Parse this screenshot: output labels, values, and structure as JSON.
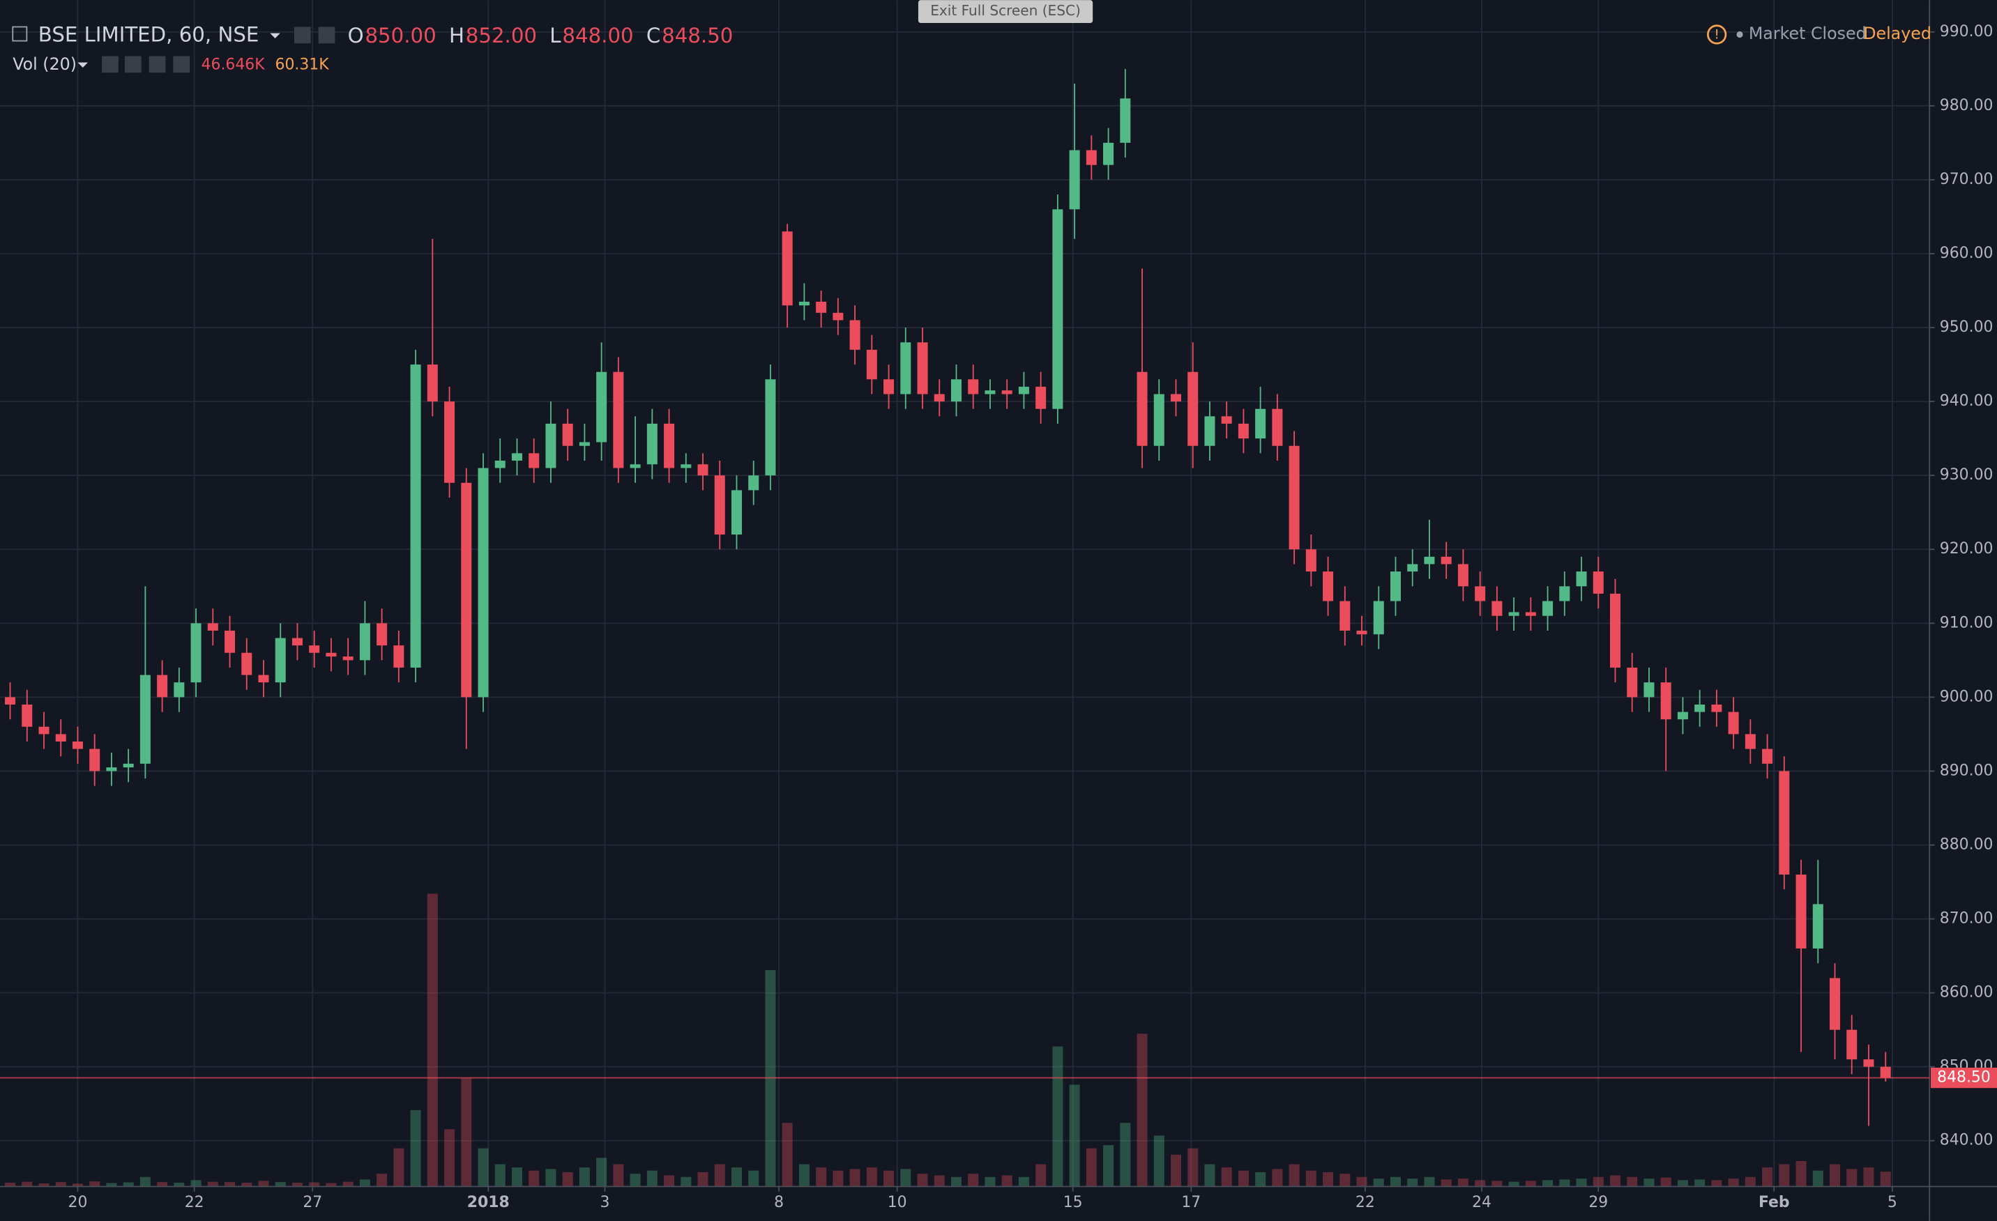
{
  "header": {
    "symbol": "BSE LIMITED, 60, NSE",
    "ohlc": [
      {
        "key": "O",
        "value": "850.00"
      },
      {
        "key": "H",
        "value": "852.00"
      },
      {
        "key": "L",
        "value": "848.00"
      },
      {
        "key": "C",
        "value": "848.50"
      }
    ],
    "volume_title": "Vol (20)",
    "volume_value": "46.646K",
    "volume_ma": "60.31K",
    "exit_button": "Exit Full Screen (ESC)",
    "status": "Market Closed",
    "delay": "Delayed"
  },
  "chart_data": {
    "type": "candlestick",
    "open": [
      900,
      899,
      896,
      895,
      894,
      893,
      890,
      890.5,
      891,
      903,
      900,
      902,
      910,
      909,
      906,
      903,
      902,
      908,
      907,
      906,
      905.5,
      905,
      910,
      907,
      904,
      945,
      940,
      929,
      900,
      931,
      932,
      933,
      931,
      937,
      934,
      934.5,
      944,
      931,
      931.5,
      937,
      931,
      931.5,
      930,
      922,
      928,
      930,
      963,
      953,
      953.5,
      952,
      951,
      947,
      943,
      941,
      948,
      941,
      940,
      943,
      941,
      941.5,
      941,
      942,
      939,
      966,
      974,
      972,
      975,
      944,
      934,
      941,
      944,
      934,
      938,
      937,
      935,
      939,
      934,
      920,
      917,
      913,
      909,
      908.5,
      913,
      917,
      918,
      919,
      918,
      915,
      913,
      911,
      911.5,
      911,
      913,
      915,
      917,
      914,
      904,
      900,
      902,
      897,
      898,
      899,
      898,
      895,
      893,
      890,
      876,
      866,
      862,
      855,
      851,
      850
    ],
    "high": [
      902,
      901,
      898,
      897,
      896,
      895,
      892.5,
      893,
      915,
      905,
      904,
      912,
      912,
      911,
      908,
      905,
      910,
      910,
      909,
      908,
      908,
      913,
      912,
      909,
      947,
      962,
      942,
      931,
      933,
      935,
      935,
      935,
      940,
      939,
      937,
      948,
      946,
      938,
      939,
      939,
      933,
      933,
      932,
      930,
      932,
      945,
      964,
      956,
      955,
      954,
      953,
      949,
      945,
      950,
      950,
      943,
      945,
      945,
      943,
      943,
      944,
      944,
      968,
      983,
      976,
      977,
      985,
      958,
      943,
      943,
      948,
      940,
      940,
      939,
      942,
      941,
      936,
      922,
      919,
      915,
      911,
      915,
      919,
      920,
      924,
      921,
      920,
      917,
      915,
      913.5,
      913.5,
      915,
      917,
      919,
      919,
      916,
      906,
      904,
      904,
      900,
      901,
      901,
      900,
      897,
      895,
      892,
      878,
      878,
      864,
      857,
      853,
      852
    ],
    "low": [
      897,
      894,
      893,
      892,
      891,
      888,
      888,
      888.5,
      889,
      898,
      898,
      900,
      907,
      904,
      901,
      900,
      900,
      905,
      904,
      903.5,
      903,
      903,
      905,
      902,
      902,
      938,
      927,
      893,
      898,
      929,
      930,
      929,
      929,
      932,
      932,
      932,
      929,
      929,
      929.5,
      929,
      929,
      928,
      920,
      920,
      926,
      928,
      950,
      951,
      950,
      949,
      945,
      941,
      939,
      939,
      939,
      938,
      938,
      939,
      939,
      939,
      939,
      937,
      937,
      962,
      970,
      970,
      973,
      931,
      932,
      938,
      931,
      932,
      935,
      933,
      933,
      932,
      918,
      915,
      911,
      907,
      907,
      906.5,
      911,
      915,
      916,
      916,
      913,
      911,
      909,
      909,
      909,
      909,
      911,
      913,
      912,
      902,
      898,
      898,
      890,
      895,
      896,
      896,
      893,
      891,
      889,
      874,
      852,
      864,
      851,
      849,
      842,
      848
    ],
    "close": [
      899,
      896,
      895,
      894,
      893,
      890,
      890.5,
      891,
      903,
      900,
      902,
      910,
      909,
      906,
      903,
      902,
      908,
      907,
      906,
      905.5,
      905,
      910,
      907,
      904,
      945,
      940,
      929,
      900,
      931,
      932,
      933,
      931,
      937,
      934,
      934.5,
      944,
      931,
      931.5,
      937,
      931,
      931.5,
      930,
      922,
      928,
      930,
      943,
      953,
      953.5,
      952,
      951,
      947,
      943,
      941,
      948,
      941,
      940,
      943,
      941,
      941.5,
      941,
      942,
      939,
      966,
      974,
      972,
      975,
      981,
      934,
      941,
      940,
      934,
      938,
      937,
      935,
      939,
      934,
      920,
      917,
      913,
      909,
      908.5,
      913,
      917,
      918,
      919,
      918,
      915,
      913,
      911,
      911.5,
      911,
      913,
      915,
      917,
      914,
      904,
      900,
      902,
      897,
      898,
      899,
      898,
      895,
      893,
      891,
      876,
      866,
      872,
      855,
      851,
      850,
      848.5
    ],
    "volume": [
      12000,
      15000,
      10000,
      14000,
      9000,
      16000,
      11000,
      13000,
      30000,
      14000,
      12000,
      20000,
      15000,
      14000,
      12000,
      18000,
      14000,
      12000,
      13000,
      11000,
      15000,
      22000,
      40000,
      120000,
      240000,
      920000,
      180000,
      340000,
      120000,
      70000,
      60000,
      50000,
      55000,
      45000,
      60000,
      90000,
      70000,
      40000,
      50000,
      35000,
      30000,
      45000,
      70000,
      60000,
      50000,
      680000,
      200000,
      70000,
      60000,
      50000,
      55000,
      60000,
      50000,
      55000,
      40000,
      35000,
      30000,
      40000,
      30000,
      35000,
      30000,
      70000,
      440000,
      320000,
      120000,
      130000,
      200000,
      480000,
      160000,
      100000,
      120000,
      70000,
      60000,
      50000,
      45000,
      55000,
      70000,
      50000,
      45000,
      40000,
      30000,
      25000,
      30000,
      25000,
      30000,
      22000,
      25000,
      20000,
      18000,
      15000,
      18000,
      20000,
      22000,
      25000,
      30000,
      35000,
      30000,
      25000,
      28000,
      20000,
      22000,
      20000,
      25000,
      30000,
      60000,
      70000,
      80000,
      50000,
      70000,
      55000,
      60000,
      46646
    ],
    "up_color": "#53b987",
    "down_color": "#eb4d5c",
    "grid": true,
    "ylim": [
      833.8,
      994.3
    ],
    "yticks": [
      {
        "value": 840,
        "label": "840.00"
      },
      {
        "value": 850,
        "label": "850.00"
      },
      {
        "value": 860,
        "label": "860.00"
      },
      {
        "value": 870,
        "label": "870.00"
      },
      {
        "value": 880,
        "label": "880.00"
      },
      {
        "value": 890,
        "label": "890.00"
      },
      {
        "value": 900,
        "label": "900.00"
      },
      {
        "value": 910,
        "label": "910.00"
      },
      {
        "value": 920,
        "label": "920.00"
      },
      {
        "value": 930,
        "label": "930.00"
      },
      {
        "value": 940,
        "label": "940.00"
      },
      {
        "value": 950,
        "label": "950.00"
      },
      {
        "value": 960,
        "label": "960.00"
      },
      {
        "value": 970,
        "label": "970.00"
      },
      {
        "value": 980,
        "label": "980.00"
      },
      {
        "value": 990,
        "label": "990.00"
      }
    ],
    "xlim": [
      -0.6,
      113.6
    ],
    "xticks": [
      {
        "value": 4.0,
        "label": "20"
      },
      {
        "value": 10.9,
        "label": "22"
      },
      {
        "value": 17.9,
        "label": "27"
      },
      {
        "value": 28.3,
        "label": "2018"
      },
      {
        "value": 35.2,
        "label": "3"
      },
      {
        "value": 45.5,
        "label": "8"
      },
      {
        "value": 52.5,
        "label": "10"
      },
      {
        "value": 62.9,
        "label": "15"
      },
      {
        "value": 69.9,
        "label": "17"
      },
      {
        "value": 80.2,
        "label": "22"
      },
      {
        "value": 87.1,
        "label": "24"
      },
      {
        "value": 94.0,
        "label": "29"
      },
      {
        "value": 104.4,
        "label": "Feb"
      },
      {
        "value": 111.4,
        "label": "5"
      }
    ],
    "volume_ylim": [
      0,
      3728000
    ],
    "last_price": {
      "value": 848.5,
      "label": "848.50"
    }
  }
}
